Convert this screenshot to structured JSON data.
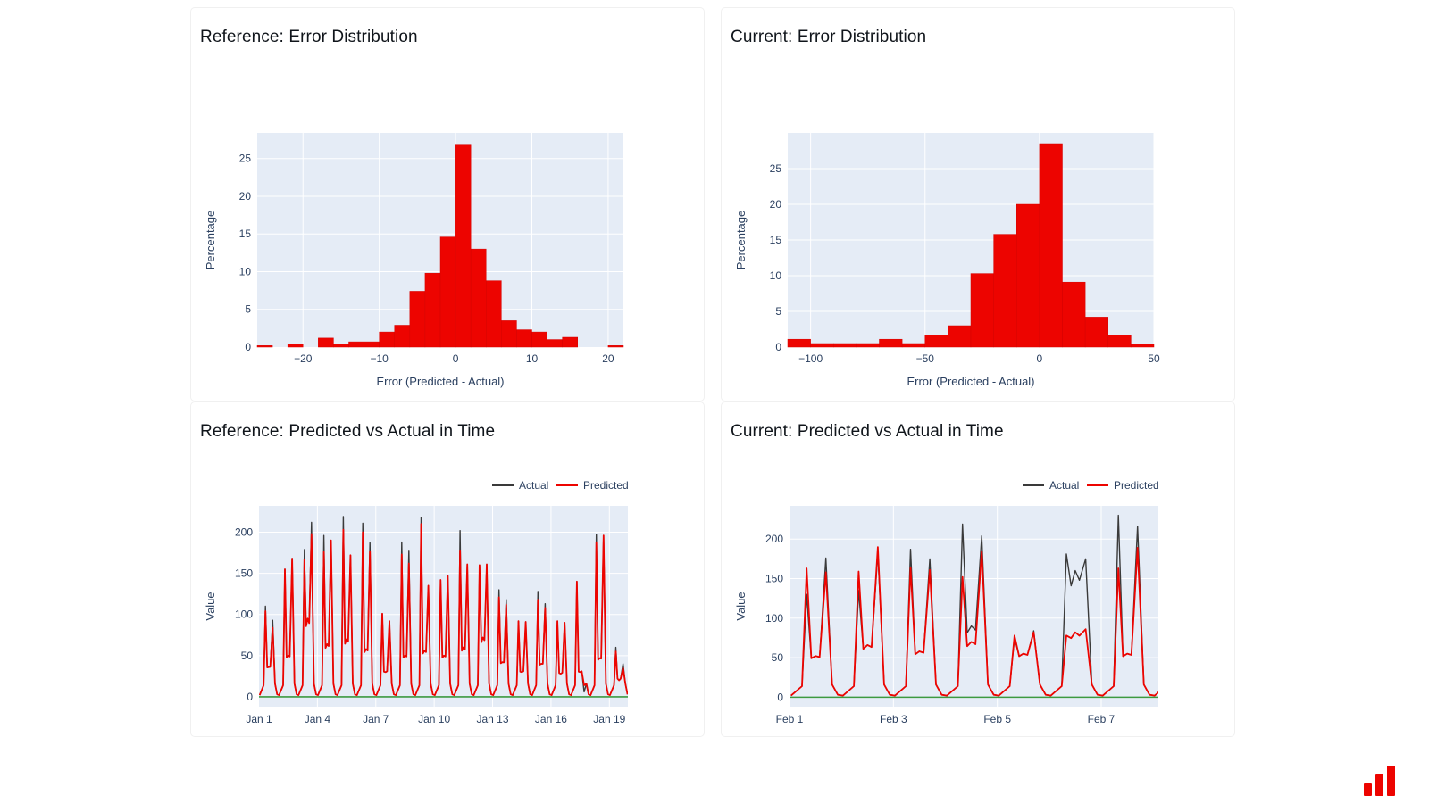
{
  "page": {
    "background": "#ffffff"
  },
  "colors": {
    "accent_red": "#ed0400",
    "bar_stroke": "#d40300",
    "plot_bg": "#e5ecf6",
    "grid": "#ffffff",
    "axis_text": "#2a3f5f",
    "actual_line": "#3a3a3a",
    "predicted_line": "#ed0400",
    "zero_line_green": "#3d9a40",
    "card_border": "#f0f0f0"
  },
  "cards": [
    {
      "title": "Reference: Error Distribution"
    },
    {
      "title": "Current: Error Distribution"
    },
    {
      "title": "Reference: Predicted vs Actual in Time"
    },
    {
      "title": "Current: Predicted vs Actual in Time"
    }
  ],
  "logo": {
    "name": "evidently-logo",
    "bars": 3,
    "color": "#ed0400"
  },
  "chart_data": [
    {
      "type": "bar",
      "kind": "histogram",
      "title": "Reference: Error Distribution",
      "xlabel": "Error (Predicted - Actual)",
      "ylabel": "Percentage",
      "bin_start": -26,
      "bin_width": 2,
      "values": [
        0.2,
        0,
        0.4,
        0,
        1.2,
        0.4,
        0.7,
        0.7,
        2.0,
        2.9,
        7.4,
        9.8,
        14.6,
        26.9,
        13.0,
        8.8,
        3.5,
        2.3,
        2.0,
        1.0,
        1.3,
        0,
        0,
        0.2
      ],
      "xlim": [
        -26,
        22
      ],
      "ylim": [
        0,
        28.4
      ],
      "xticks": [
        -20,
        -10,
        0,
        10,
        20
      ],
      "yticks": [
        0,
        5,
        10,
        15,
        20,
        25
      ],
      "grid": true,
      "bar_color": "#ed0400"
    },
    {
      "type": "bar",
      "kind": "histogram",
      "title": "Current: Error Distribution",
      "xlabel": "Error (Predicted - Actual)",
      "ylabel": "Percentage",
      "bin_start": -110,
      "bin_width": 10,
      "values": [
        1.1,
        0.5,
        0.5,
        0.5,
        1.1,
        0.5,
        1.7,
        3.0,
        10.3,
        15.8,
        20.0,
        28.5,
        9.1,
        4.2,
        1.7,
        0.4
      ],
      "xlim": [
        -110,
        50
      ],
      "ylim": [
        0,
        30
      ],
      "xticks": [
        -100,
        -50,
        0,
        50
      ],
      "yticks": [
        0,
        5,
        10,
        15,
        20,
        25
      ],
      "grid": true,
      "bar_color": "#ed0400"
    },
    {
      "type": "line",
      "title": "Reference: Predicted vs Actual in Time",
      "xlabel": "",
      "ylabel": "Value",
      "legend": [
        "Actual",
        "Predicted"
      ],
      "legend_position": "top-right",
      "x_tick_vals": [
        0,
        3,
        6,
        9,
        12,
        15,
        18
      ],
      "x_tick_labels": [
        "Jan 1",
        "Jan 4",
        "Jan 7",
        "Jan 10",
        "Jan 13",
        "Jan 16",
        "Jan 19"
      ],
      "yticks": [
        0,
        50,
        100,
        150,
        200
      ],
      "xlim": [
        0,
        18.95
      ],
      "ylim": [
        -12,
        232
      ],
      "grid": true,
      "zero_line": 0,
      "series_days_format": [
        "actual_peak1",
        "actual_mid",
        "actual_peak2",
        "pred_peak1",
        "pred_mid",
        "pred_peak2"
      ],
      "days_unit": "one array per day, values approx. from chart",
      "days": [
        [
          110,
          36,
          93,
          104,
          36,
          84
        ],
        [
          155,
          50,
          168,
          155,
          50,
          168
        ],
        [
          179,
          95,
          212,
          167,
          95,
          198
        ],
        [
          196,
          64,
          190,
          176,
          64,
          190
        ],
        [
          219,
          70,
          172,
          203,
          70,
          172
        ],
        [
          211,
          58,
          187,
          200,
          58,
          177
        ],
        [
          101,
          30,
          92,
          101,
          30,
          92
        ],
        [
          188,
          50,
          178,
          173,
          50,
          162
        ],
        [
          218,
          56,
          135,
          210,
          56,
          135
        ],
        [
          142,
          50,
          147,
          142,
          50,
          147
        ],
        [
          202,
          60,
          161,
          178,
          60,
          161
        ],
        [
          160,
          72,
          161,
          160,
          72,
          161
        ],
        [
          130,
          42,
          118,
          121,
          42,
          112
        ],
        [
          92,
          30,
          91,
          92,
          30,
          91
        ],
        [
          128,
          40,
          113,
          118,
          40,
          108
        ],
        [
          92,
          28,
          90,
          92,
          28,
          90
        ],
        [
          140,
          30,
          6,
          140,
          30,
          14
        ],
        [
          197,
          47,
          196,
          188,
          47,
          196
        ],
        [
          60,
          20,
          40,
          55,
          20,
          35
        ]
      ]
    },
    {
      "type": "line",
      "title": "Current: Predicted vs Actual in Time",
      "xlabel": "",
      "ylabel": "Value",
      "legend": [
        "Actual",
        "Predicted"
      ],
      "legend_position": "top-right",
      "x_tick_vals": [
        0,
        2,
        4,
        6
      ],
      "x_tick_labels": [
        "Feb 1",
        "Feb 3",
        "Feb 5",
        "Feb 7"
      ],
      "yticks": [
        0,
        50,
        100,
        150,
        200
      ],
      "xlim": [
        0,
        7.1
      ],
      "ylim": [
        -12,
        242
      ],
      "grid": true,
      "zero_line": 0,
      "series_days_format": [
        "actual_peak1",
        "actual_mid",
        "actual_peak2",
        "pred_peak1",
        "pred_mid",
        "pred_peak2"
      ],
      "days_unit": "one array per day, values approx. from chart",
      "days": [
        [
          130,
          52,
          176,
          163,
          52,
          158
        ],
        [
          135,
          66,
          183,
          159,
          66,
          190
        ],
        [
          187,
          58,
          175,
          164,
          58,
          161
        ],
        [
          219,
          90,
          204,
          152,
          70,
          185
        ],
        [
          75,
          55,
          84,
          78,
          55,
          82
        ],
        [
          181,
          160,
          175,
          78,
          82,
          86
        ],
        [
          230,
          55,
          216,
          163,
          55,
          189
        ],
        [
          40,
          20,
          30,
          38,
          20,
          28
        ]
      ]
    }
  ]
}
